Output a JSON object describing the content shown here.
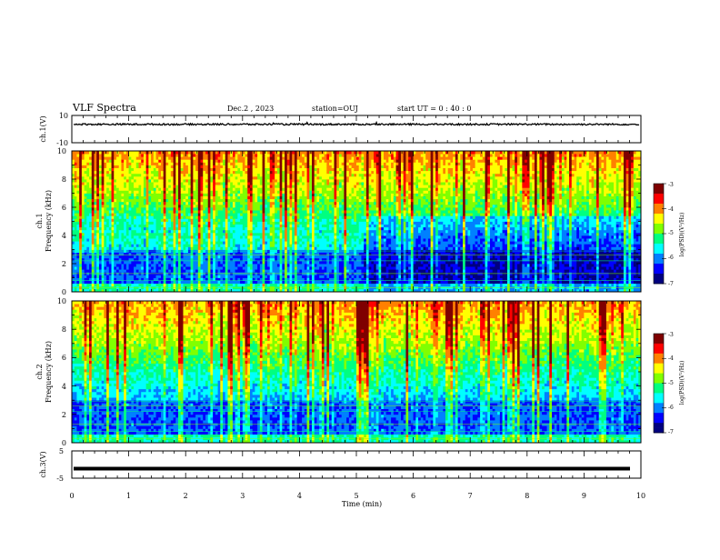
{
  "header": {
    "title": "VLF Spectra",
    "date": "Dec.2 , 2023",
    "station": "station=OUJ",
    "start_ut": "start UT = 0 : 40 : 0"
  },
  "chart_data": [
    {
      "type": "line",
      "panel": "ch1-waveform",
      "ylabel": "ch.1(V)",
      "ylim": [
        -10,
        10
      ],
      "yticks": [
        "10",
        "-10"
      ],
      "xlim": [
        0,
        10
      ],
      "series": [
        {
          "approx_level": 3.5,
          "noise_amplitude": 0.6
        }
      ],
      "color": "#000000"
    },
    {
      "type": "heatmap",
      "panel": "ch1-spectrogram",
      "ylabel_line1": "ch.1",
      "ylabel_line2": "Frequency (kHz)",
      "ylim": [
        0,
        10
      ],
      "yticks": [
        "0",
        "2",
        "4",
        "6",
        "8",
        "10"
      ],
      "xlim": [
        0,
        10
      ],
      "colorbar": {
        "label": "log(PSD)(V²/Hz)",
        "range": [
          -7,
          -3
        ],
        "ticks": [
          "-3",
          "-4",
          "-5",
          "-6",
          "-7"
        ]
      },
      "colormap": [
        "#00007f",
        "#0000ff",
        "#0080ff",
        "#00ffff",
        "#00ff80",
        "#80ff00",
        "#ffff00",
        "#ff8000",
        "#ff0000",
        "#7f0000"
      ]
    },
    {
      "type": "heatmap",
      "panel": "ch2-spectrogram",
      "ylabel_line1": "ch.2",
      "ylabel_line2": "Frequency (kHz)",
      "ylim": [
        0,
        10
      ],
      "yticks": [
        "0",
        "2",
        "4",
        "6",
        "8",
        "10"
      ],
      "xlim": [
        0,
        10
      ],
      "colorbar": {
        "label": "log(PSD)(V²/Hz)",
        "range": [
          -7,
          -3
        ],
        "ticks": [
          "-3",
          "-4",
          "-5",
          "-6",
          "-7"
        ]
      },
      "colormap": [
        "#00007f",
        "#0000ff",
        "#0080ff",
        "#00ffff",
        "#00ff80",
        "#80ff00",
        "#ffff00",
        "#ff8000",
        "#ff0000",
        "#7f0000"
      ]
    },
    {
      "type": "line",
      "panel": "ch3-waveform",
      "ylabel": "ch.3(V)",
      "ylim": [
        -5,
        5
      ],
      "yticks": [
        "5",
        "-5"
      ],
      "xlim": [
        0,
        10
      ],
      "series": [
        {
          "approx_level": -1.5
        }
      ],
      "color": "#000000"
    }
  ],
  "xaxis": {
    "label": "Time (min)",
    "ticks": [
      "0",
      "1",
      "2",
      "3",
      "4",
      "5",
      "6",
      "7",
      "8",
      "9",
      "10"
    ]
  }
}
